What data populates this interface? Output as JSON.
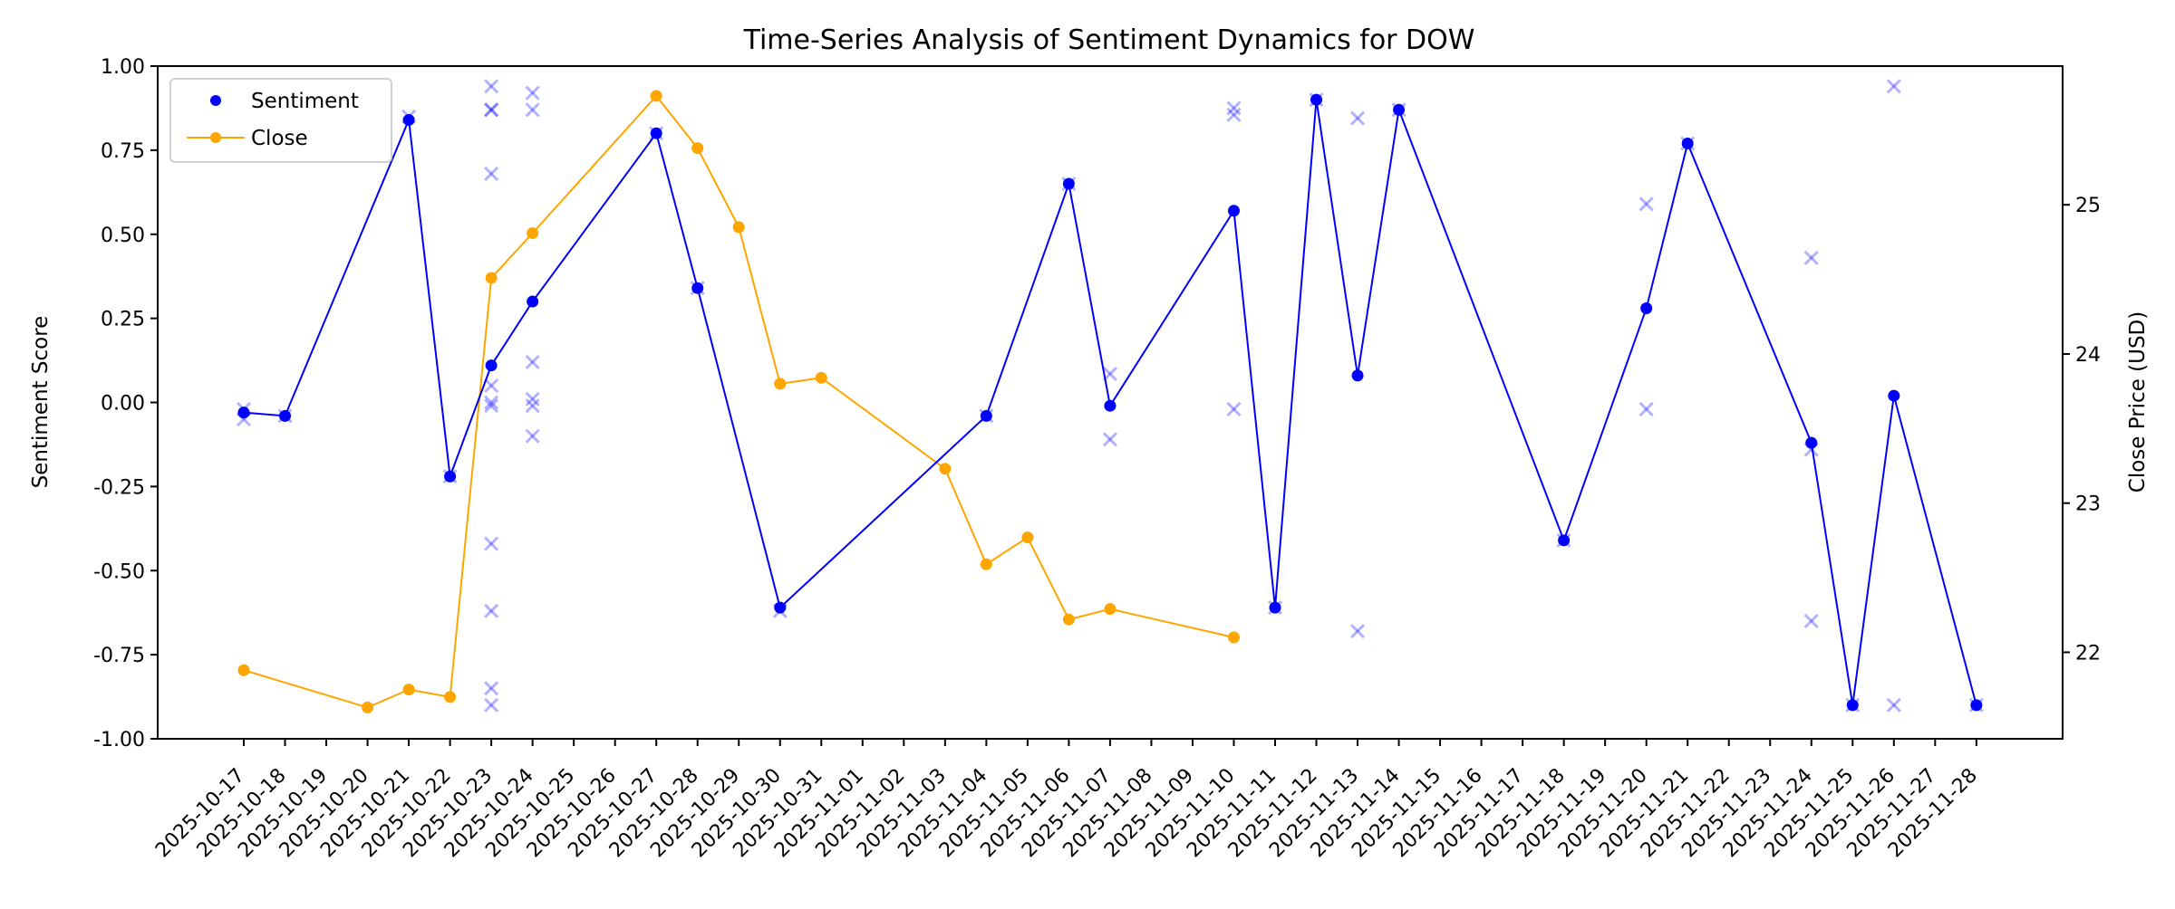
{
  "chart_data": {
    "type": "line",
    "title": "Time-Series Analysis of Sentiment Dynamics for DOW",
    "xlabel": "",
    "ylabel": "Sentiment Score",
    "y2label": "Close Price (USD)",
    "ylim": [
      -1.0,
      1.0
    ],
    "y2lim": [
      21.42,
      25.93
    ],
    "yticks": [
      "-1.00",
      "-0.75",
      "-0.50",
      "-0.25",
      "0.00",
      "0.25",
      "0.50",
      "0.75",
      "1.00"
    ],
    "y2ticks": [
      "22",
      "23",
      "24",
      "25"
    ],
    "xticks": [
      "2025-10-17",
      "2025-10-18",
      "2025-10-19",
      "2025-10-20",
      "2025-10-21",
      "2025-10-22",
      "2025-10-23",
      "2025-10-24",
      "2025-10-25",
      "2025-10-26",
      "2025-10-27",
      "2025-10-28",
      "2025-10-29",
      "2025-10-30",
      "2025-10-31",
      "2025-11-01",
      "2025-11-02",
      "2025-11-03",
      "2025-11-04",
      "2025-11-05",
      "2025-11-06",
      "2025-11-07",
      "2025-11-08",
      "2025-11-09",
      "2025-11-10",
      "2025-11-11",
      "2025-11-12",
      "2025-11-13",
      "2025-11-14",
      "2025-11-15",
      "2025-11-16",
      "2025-11-17",
      "2025-11-18",
      "2025-11-19",
      "2025-11-20",
      "2025-11-21",
      "2025-11-22",
      "2025-11-23",
      "2025-11-24",
      "2025-11-25",
      "2025-11-26",
      "2025-11-27",
      "2025-11-28"
    ],
    "grid": false,
    "legend": {
      "placement": "top-left",
      "entries": [
        "Sentiment",
        "Close"
      ]
    },
    "colors": {
      "sentiment": "#0000ff",
      "close": "#ffa500",
      "scores": "#0000ff"
    },
    "series": [
      {
        "name": "Sentiment",
        "axis": "left",
        "marker": "dot",
        "x": [
          "2025-10-17",
          "2025-10-18",
          "2025-10-21",
          "2025-10-22",
          "2025-10-23",
          "2025-10-24",
          "2025-10-27",
          "2025-10-28",
          "2025-10-30",
          "2025-11-04",
          "2025-11-06",
          "2025-11-07",
          "2025-11-10",
          "2025-11-11",
          "2025-11-12",
          "2025-11-13",
          "2025-11-14",
          "2025-11-18",
          "2025-11-20",
          "2025-11-21",
          "2025-11-24",
          "2025-11-25",
          "2025-11-26",
          "2025-11-28"
        ],
        "y": [
          -0.03,
          -0.04,
          0.84,
          -0.22,
          0.11,
          0.3,
          0.8,
          0.34,
          -0.61,
          -0.04,
          0.65,
          -0.01,
          0.57,
          -0.61,
          0.9,
          0.08,
          0.87,
          -0.41,
          0.28,
          0.77,
          -0.12,
          -0.9,
          0.02,
          -0.9
        ]
      },
      {
        "name": "Close",
        "axis": "right",
        "marker": "dot-line",
        "x": [
          "2025-10-17",
          "2025-10-20",
          "2025-10-21",
          "2025-10-22",
          "2025-10-23",
          "2025-10-24",
          "2025-10-27",
          "2025-10-28",
          "2025-10-29",
          "2025-10-30",
          "2025-10-31",
          "2025-11-03",
          "2025-11-04",
          "2025-11-05",
          "2025-11-06",
          "2025-11-07",
          "2025-11-10"
        ],
        "y": [
          21.88,
          21.63,
          21.75,
          21.7,
          24.51,
          24.81,
          25.73,
          25.38,
          24.85,
          23.8,
          23.84,
          23.23,
          22.59,
          22.77,
          22.22,
          22.29,
          22.1
        ]
      },
      {
        "axis": "left",
        "marker": "x",
        "points": [
          {
            "x": "2025-10-17",
            "y": [
              -0.02,
              -0.05
            ]
          },
          {
            "x": "2025-10-18",
            "y": [
              -0.04
            ]
          },
          {
            "x": "2025-10-21",
            "y": [
              0.85
            ]
          },
          {
            "x": "2025-10-22",
            "y": [
              -0.22
            ]
          },
          {
            "x": "2025-10-23",
            "y": [
              0.94,
              0.87,
              0.87,
              0.68,
              0.05,
              0.0,
              -0.01,
              -0.42,
              -0.62,
              -0.85,
              -0.9
            ]
          },
          {
            "x": "2025-10-24",
            "y": [
              0.92,
              0.87,
              0.12,
              0.01,
              -0.01,
              -0.1
            ]
          },
          {
            "x": "2025-10-27",
            "y": [
              0.8
            ]
          },
          {
            "x": "2025-10-28",
            "y": [
              0.34
            ]
          },
          {
            "x": "2025-10-30",
            "y": [
              -0.62
            ]
          },
          {
            "x": "2025-11-04",
            "y": [
              -0.04
            ]
          },
          {
            "x": "2025-11-06",
            "y": [
              0.65
            ]
          },
          {
            "x": "2025-11-07",
            "y": [
              0.085,
              -0.11
            ]
          },
          {
            "x": "2025-11-10",
            "y": [
              0.875,
              0.855,
              -0.02
            ]
          },
          {
            "x": "2025-11-11",
            "y": [
              -0.61
            ]
          },
          {
            "x": "2025-11-12",
            "y": [
              0.9
            ]
          },
          {
            "x": "2025-11-13",
            "y": [
              0.845,
              -0.68
            ]
          },
          {
            "x": "2025-11-14",
            "y": [
              0.87
            ]
          },
          {
            "x": "2025-11-18",
            "y": [
              -0.41
            ]
          },
          {
            "x": "2025-11-20",
            "y": [
              0.59,
              -0.02
            ]
          },
          {
            "x": "2025-11-21",
            "y": [
              0.77
            ]
          },
          {
            "x": "2025-11-24",
            "y": [
              0.43,
              -0.14,
              -0.65
            ]
          },
          {
            "x": "2025-11-25",
            "y": [
              -0.9
            ]
          },
          {
            "x": "2025-11-26",
            "y": [
              0.94,
              -0.9
            ]
          },
          {
            "x": "2025-11-28",
            "y": [
              -0.9
            ]
          }
        ]
      }
    ]
  }
}
